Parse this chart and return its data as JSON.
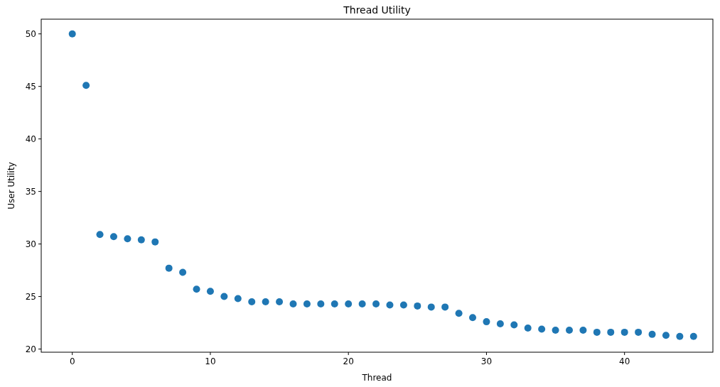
{
  "chart_data": {
    "type": "scatter",
    "title": "Thread Utility",
    "xlabel": "Thread",
    "ylabel": "User Utility",
    "x": [
      0,
      1,
      2,
      3,
      4,
      5,
      6,
      7,
      8,
      9,
      10,
      11,
      12,
      13,
      14,
      15,
      16,
      17,
      18,
      19,
      20,
      21,
      22,
      23,
      24,
      25,
      26,
      27,
      28,
      29,
      30,
      31,
      32,
      33,
      34,
      35,
      36,
      37,
      38,
      39,
      40,
      41,
      42,
      43,
      44,
      45
    ],
    "series": [
      {
        "color": "#1f77b4",
        "values": [
          50.0,
          45.1,
          30.9,
          30.7,
          30.5,
          30.4,
          30.2,
          27.7,
          27.3,
          25.7,
          25.5,
          25.0,
          24.8,
          24.5,
          24.5,
          24.5,
          24.3,
          24.3,
          24.3,
          24.3,
          24.3,
          24.3,
          24.3,
          24.2,
          24.2,
          24.1,
          24.0,
          24.0,
          23.4,
          23.0,
          22.6,
          22.4,
          22.3,
          22.0,
          21.9,
          21.8,
          21.8,
          21.8,
          21.6,
          21.6,
          21.6,
          21.6,
          21.4,
          21.3,
          21.2,
          21.2
        ]
      }
    ],
    "xlim": [
      -2.25,
      46.4
    ],
    "ylim": [
      19.7,
      51.4
    ],
    "xticks": [
      0,
      10,
      20,
      30,
      40
    ],
    "yticks": [
      20,
      25,
      30,
      35,
      40,
      45,
      50
    ],
    "marker": "circle"
  }
}
